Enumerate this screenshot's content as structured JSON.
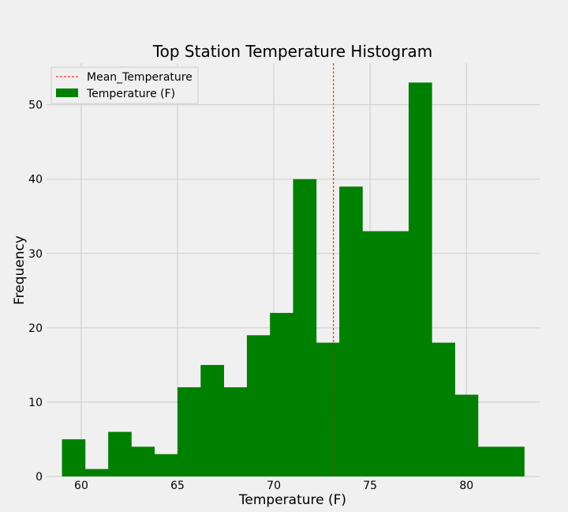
{
  "chart_data": {
    "type": "bar",
    "title": "Top Station Temperature Histogram",
    "xlabel": "Temperature (F)",
    "ylabel": "Frequency",
    "xlim": [
      58.2,
      83.8
    ],
    "ylim": [
      0,
      55.6
    ],
    "xticks": [
      60,
      65,
      70,
      75,
      80
    ],
    "yticks": [
      0,
      10,
      20,
      30,
      40,
      50
    ],
    "grid": true,
    "legend_position": "top-left",
    "bin_edges": [
      59.0,
      60.2,
      61.4,
      62.6,
      63.8,
      65.0,
      66.2,
      67.4,
      68.6,
      69.8,
      71.0,
      72.2,
      73.4,
      74.6,
      75.8,
      77.0,
      78.2,
      79.4,
      80.6,
      81.8,
      83.0
    ],
    "series": [
      {
        "name": "Temperature (F)",
        "values": [
          5,
          1,
          6,
          4,
          3,
          12,
          15,
          12,
          19,
          22,
          40,
          18,
          39,
          33,
          33,
          53,
          18,
          11,
          4,
          4
        ],
        "color": "#008000"
      }
    ],
    "mean_line": {
      "name": "Mean_Temperature",
      "x": 73.1,
      "color": "#ff0000"
    }
  }
}
